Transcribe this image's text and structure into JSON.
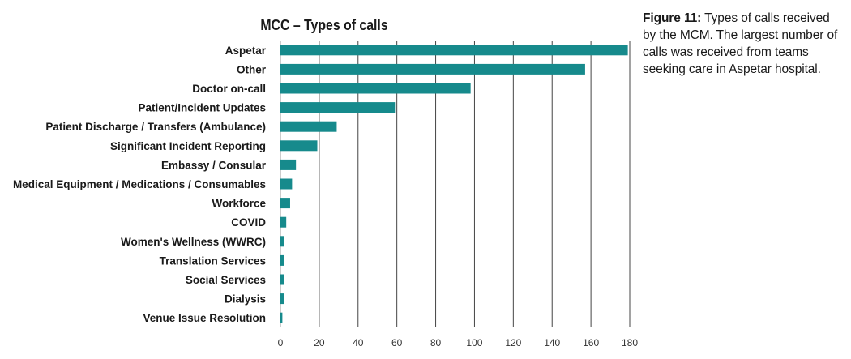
{
  "caption": {
    "label": "Figure 11:",
    "text": " Types of calls received by the MCM. The largest number of calls was received from teams seeking care in Aspetar hospital."
  },
  "chart_data": {
    "type": "bar",
    "orientation": "horizontal",
    "title": "MCC – Types of calls",
    "xlabel": "",
    "ylabel": "",
    "categories": [
      "Aspetar",
      "Other",
      "Doctor on-call",
      "Patient/Incident Updates",
      "Patient Discharge / Transfers (Ambulance)",
      "Significant Incident Reporting",
      "Embassy / Consular",
      "Medical Equipment / Medications / Consumables",
      "Workforce",
      "COVID",
      "Women's Wellness (WWRC)",
      "Translation Services",
      "Social Services",
      "Dialysis",
      "Venue Issue Resolution"
    ],
    "values": [
      179,
      157,
      98,
      59,
      29,
      19,
      8,
      6,
      5,
      3,
      2,
      2,
      2,
      2,
      1
    ],
    "xlim": [
      0,
      180
    ],
    "xticks": [
      0,
      20,
      40,
      60,
      80,
      100,
      120,
      140,
      160,
      180
    ],
    "grid": "vertical",
    "bar_color": "#168a8c"
  }
}
